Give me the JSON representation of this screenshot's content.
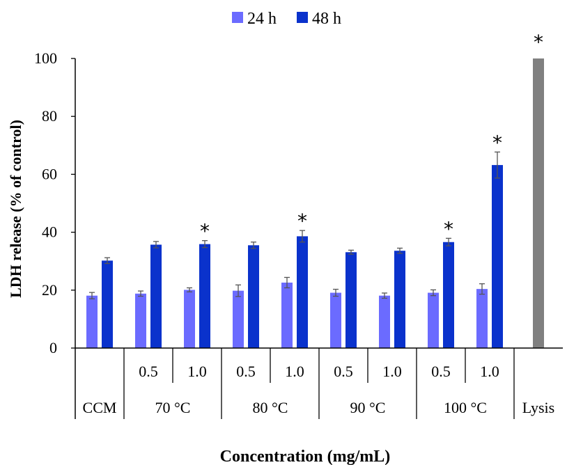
{
  "chart_data": {
    "type": "bar",
    "title": "",
    "xlabel": "Concentration (mg/mL)",
    "ylabel": "LDH release (% of control)",
    "ylim": [
      0,
      100
    ],
    "yticks": [
      0,
      20,
      40,
      60,
      80,
      100
    ],
    "grid": false,
    "legend_position": "top-center",
    "colors": {
      "24 h": "#6b6bff",
      "48 h": "#0a32cc",
      "Lysis": "#808080"
    },
    "groups": [
      {
        "conc": "",
        "temp": "CCM",
        "values": [
          18.1,
          30.2
        ],
        "errors": [
          1.1,
          1.0
        ],
        "sig": [
          false,
          false
        ]
      },
      {
        "conc": "0.5",
        "temp": "70 °C",
        "values": [
          18.8,
          35.7
        ],
        "errors": [
          0.9,
          1.1
        ],
        "sig": [
          false,
          false
        ]
      },
      {
        "conc": "1.0",
        "temp": "70 °C",
        "values": [
          20.1,
          35.9
        ],
        "errors": [
          0.7,
          1.2
        ],
        "sig": [
          false,
          true
        ]
      },
      {
        "conc": "0.5",
        "temp": "80 °C",
        "values": [
          19.8,
          35.5
        ],
        "errors": [
          2.0,
          1.1
        ],
        "sig": [
          false,
          false
        ]
      },
      {
        "conc": "1.0",
        "temp": "80 °C",
        "values": [
          22.6,
          38.6
        ],
        "errors": [
          1.8,
          2.0
        ],
        "sig": [
          false,
          true
        ]
      },
      {
        "conc": "0.5",
        "temp": "90 °C",
        "values": [
          19.1,
          33.1
        ],
        "errors": [
          1.2,
          0.7
        ],
        "sig": [
          false,
          false
        ]
      },
      {
        "conc": "1.0",
        "temp": "90 °C",
        "values": [
          18.1,
          33.6
        ],
        "errors": [
          0.9,
          0.9
        ],
        "sig": [
          false,
          false
        ]
      },
      {
        "conc": "0.5",
        "temp": "100 °C",
        "values": [
          19.1,
          36.6
        ],
        "errors": [
          1.0,
          1.3
        ],
        "sig": [
          false,
          true
        ]
      },
      {
        "conc": "1.0",
        "temp": "100 °C",
        "values": [
          20.4,
          63.2
        ],
        "errors": [
          1.8,
          4.5
        ],
        "sig": [
          false,
          true
        ]
      }
    ],
    "lysis": {
      "temp": "Lysis",
      "value": 100,
      "sig": true
    },
    "temperature_labels": [
      "CCM",
      "70 °C",
      "80 °C",
      "90 °C",
      "100 °C",
      "Lysis"
    ],
    "series": [
      {
        "name": "24 h"
      },
      {
        "name": "48 h"
      }
    ],
    "significance_marker": "*"
  }
}
